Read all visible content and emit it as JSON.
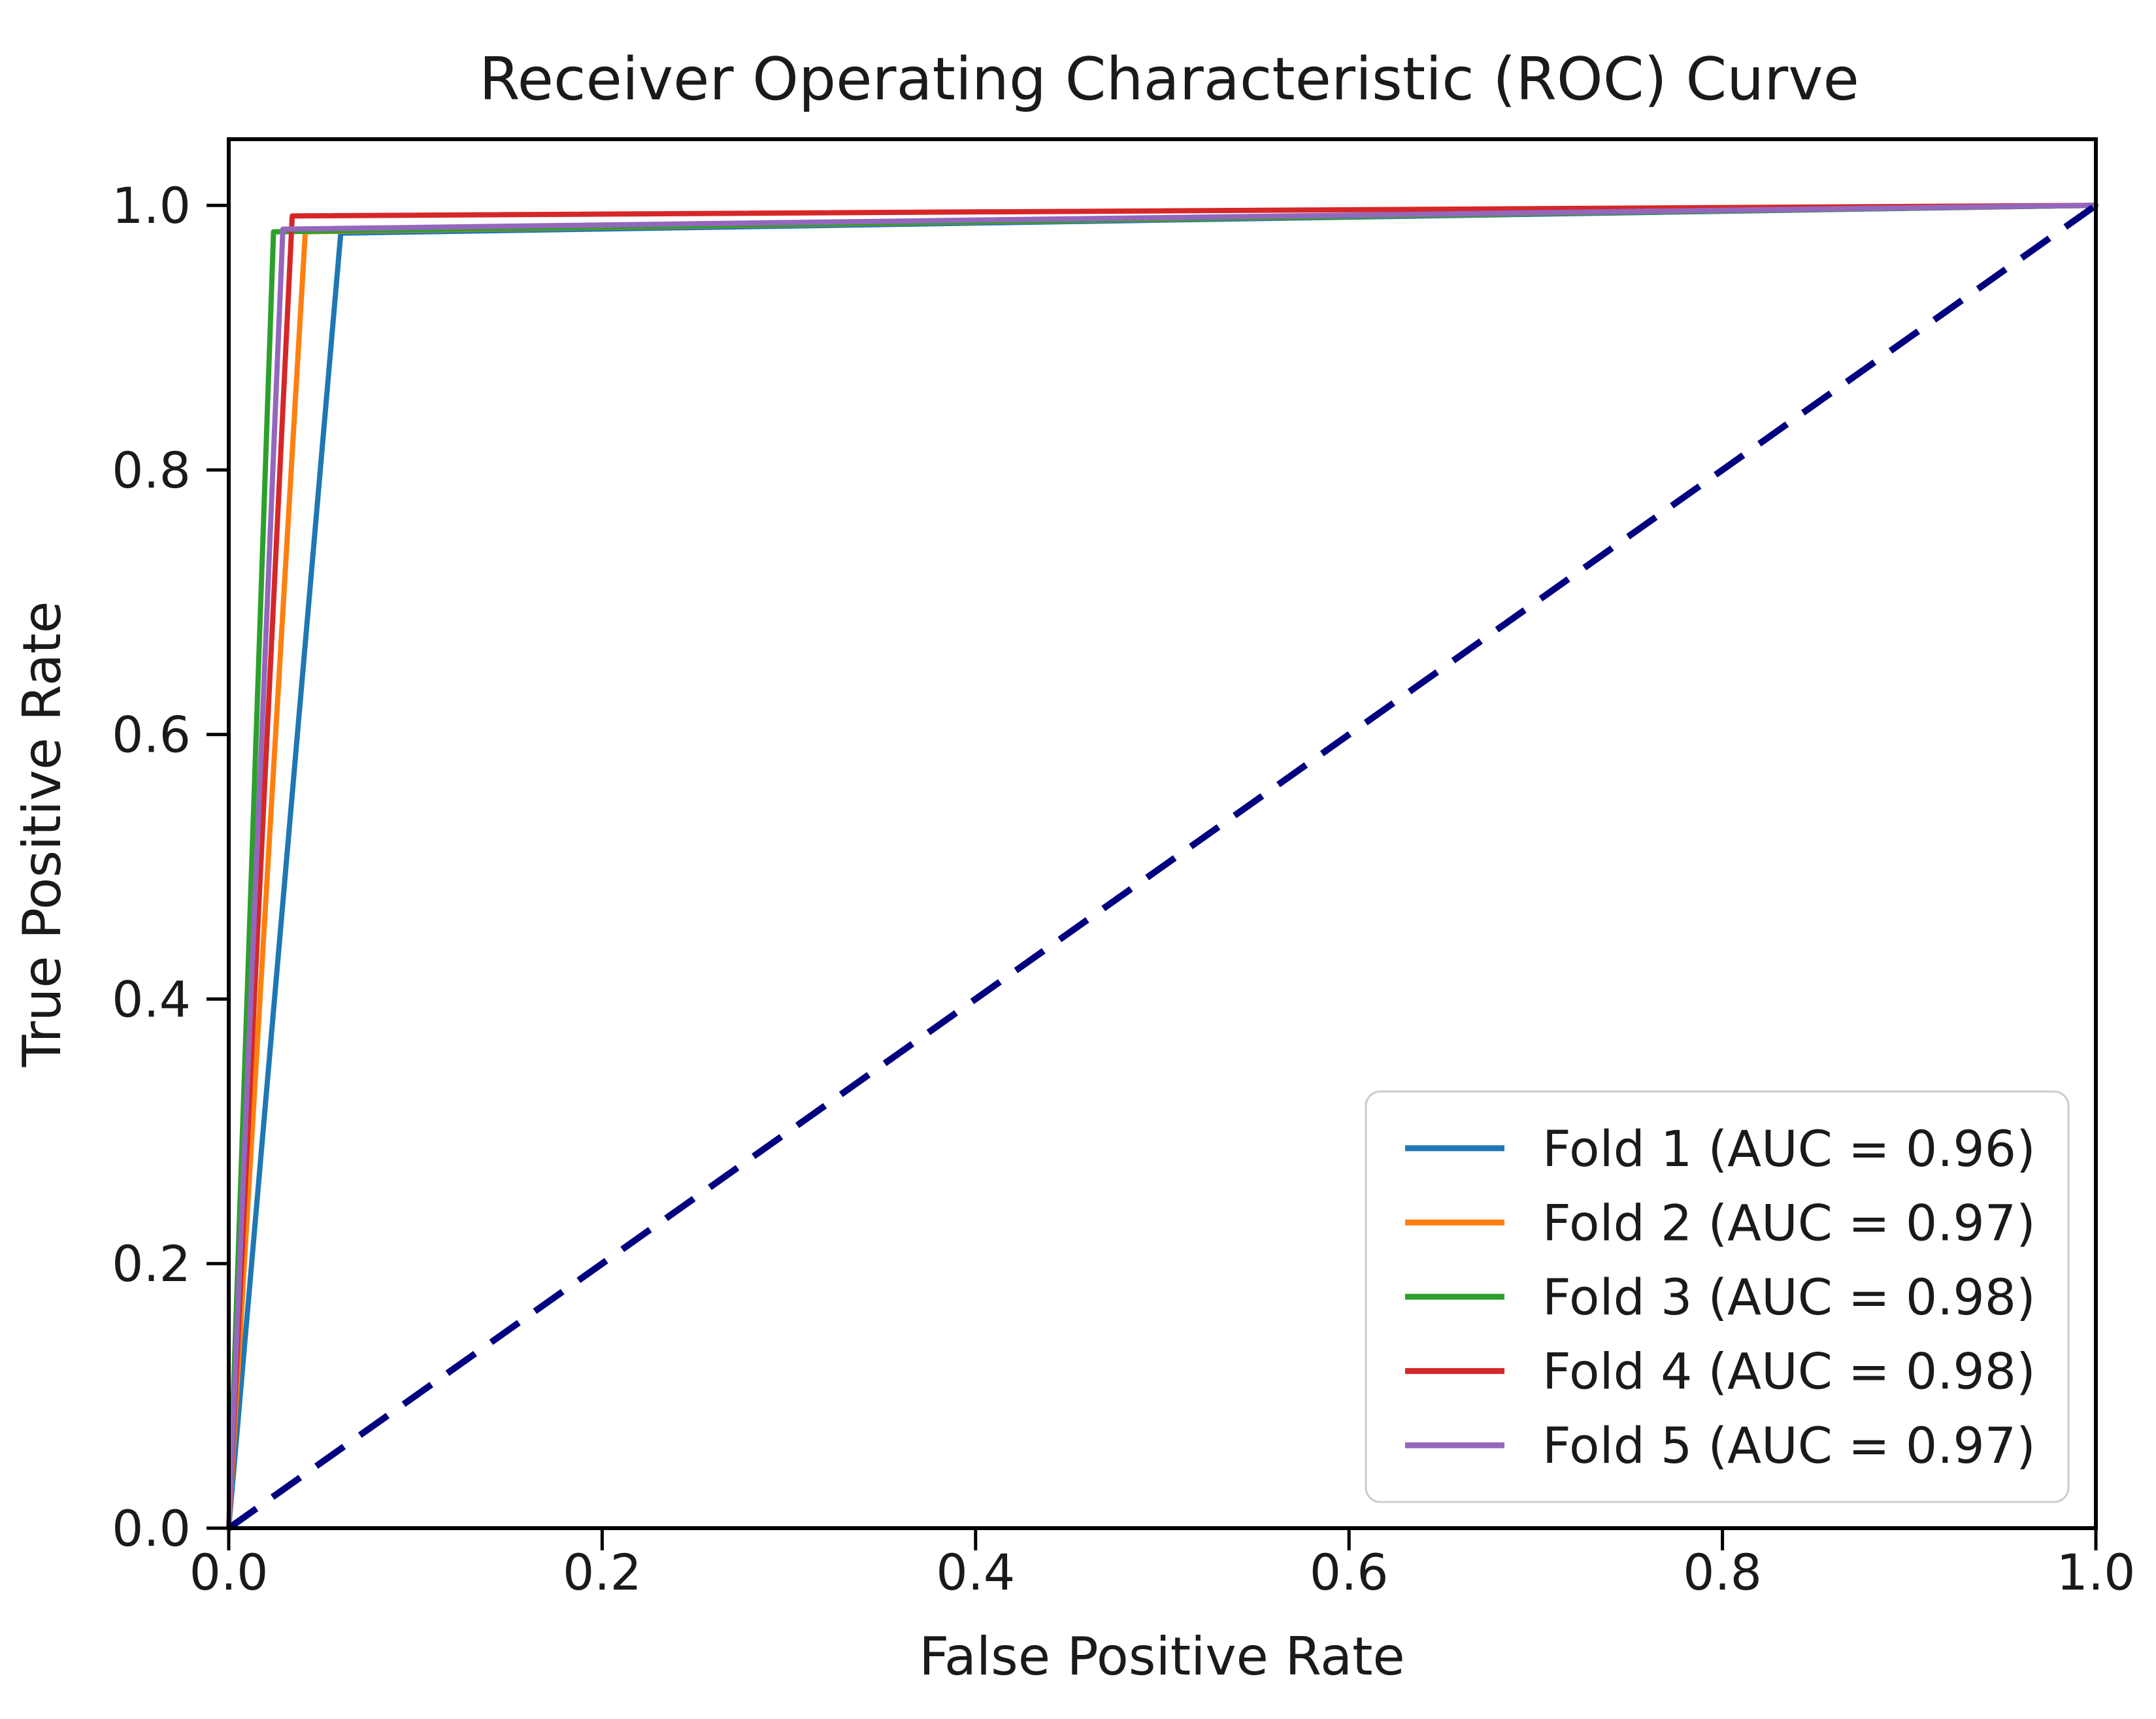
{
  "figure": {
    "background": "#ffffff"
  },
  "chart_data": {
    "type": "line",
    "title": "Receiver Operating Characteristic (ROC) Curve",
    "xlabel": "False Positive Rate",
    "ylabel": "True Positive Rate",
    "xlim": [
      0.0,
      1.0
    ],
    "ylim": [
      0.0,
      1.05
    ],
    "xticks": [
      "0.0",
      "0.2",
      "0.4",
      "0.6",
      "0.8",
      "1.0"
    ],
    "yticks": [
      "0.0",
      "0.2",
      "0.4",
      "0.6",
      "0.8",
      "1.0"
    ],
    "grid": false,
    "legend_position": "lower right",
    "series": [
      {
        "name": "Fold 1 (AUC = 0.96)",
        "fold": 1,
        "auc": 0.96,
        "color": "#1f77b4",
        "points": [
          [
            0.0,
            0.0
          ],
          [
            0.06,
            0.979
          ],
          [
            1.0,
            1.0
          ]
        ]
      },
      {
        "name": "Fold 2 (AUC = 0.97)",
        "fold": 2,
        "auc": 0.97,
        "color": "#ff7f0e",
        "points": [
          [
            0.0,
            0.0
          ],
          [
            0.041,
            0.98
          ],
          [
            1.0,
            1.0
          ]
        ]
      },
      {
        "name": "Fold 3 (AUC = 0.98)",
        "fold": 3,
        "auc": 0.98,
        "color": "#2ca02c",
        "points": [
          [
            0.0,
            0.0
          ],
          [
            0.024,
            0.98
          ],
          [
            1.0,
            1.0
          ]
        ]
      },
      {
        "name": "Fold 4 (AUC = 0.98)",
        "fold": 4,
        "auc": 0.98,
        "color": "#d62728",
        "points": [
          [
            0.0,
            0.0
          ],
          [
            0.034,
            0.992
          ],
          [
            1.0,
            1.0
          ]
        ]
      },
      {
        "name": "Fold 5 (AUC = 0.97)",
        "fold": 5,
        "auc": 0.97,
        "color": "#9467bd",
        "points": [
          [
            0.0,
            0.0
          ],
          [
            0.029,
            0.982
          ],
          [
            1.0,
            1.0
          ]
        ]
      }
    ],
    "reference_line": {
      "name": "chance-diagonal",
      "color": "#000080",
      "style": "dashed",
      "points": [
        [
          0.0,
          0.0
        ],
        [
          1.0,
          1.0
        ]
      ]
    },
    "legend_border_color": "#cccccc",
    "spine_color": "#000000"
  }
}
